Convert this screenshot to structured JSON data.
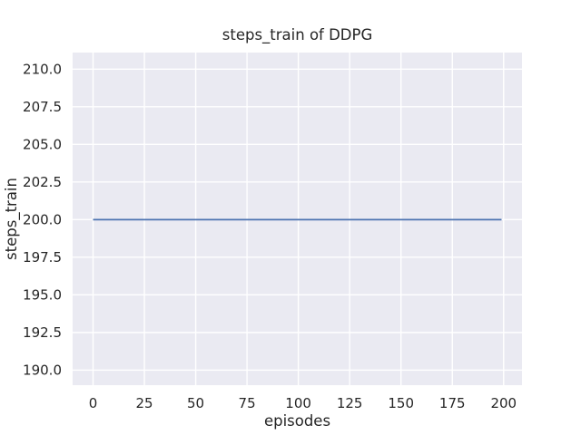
{
  "figure": {
    "background": "#FFFFFF"
  },
  "chart_data": {
    "type": "line",
    "title": "steps_train of DDPG",
    "xlabel": "episodes",
    "ylabel": "steps_train",
    "xlim": [
      -9.95,
      208.95
    ],
    "ylim": [
      189.0,
      211.1
    ],
    "xticks": [
      0,
      25,
      50,
      75,
      100,
      125,
      150,
      175,
      200
    ],
    "xtick_labels": [
      "0",
      "25",
      "50",
      "75",
      "100",
      "125",
      "150",
      "175",
      "200"
    ],
    "yticks": [
      190.0,
      192.5,
      195.0,
      197.5,
      200.0,
      202.5,
      205.0,
      207.5,
      210.0
    ],
    "ytick_labels": [
      "190.0",
      "192.5",
      "195.0",
      "197.5",
      "200.0",
      "202.5",
      "205.0",
      "207.5",
      "210.0"
    ],
    "grid": true,
    "legend_position": "none",
    "plot_background": "#EAEAF2",
    "grid_color": "#FFFFFF",
    "text_color": "#262626",
    "series": [
      {
        "name": "steps_train",
        "color": "#4C72B0",
        "line_width": 1.75,
        "x": [
          0,
          199
        ],
        "y": [
          200,
          200
        ]
      }
    ]
  }
}
